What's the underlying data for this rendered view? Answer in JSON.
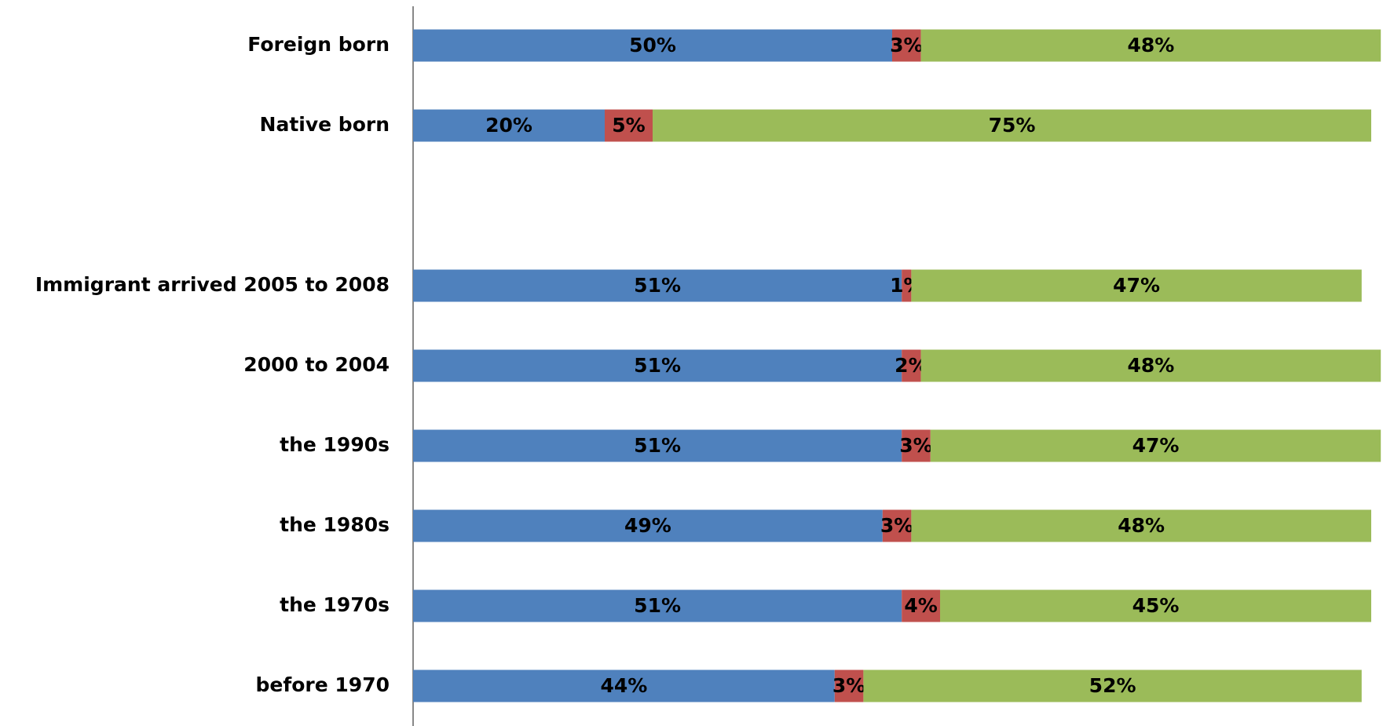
{
  "chart_data": {
    "type": "stacked-barh",
    "categories": [
      "Foreign born",
      "Native born",
      null,
      "Immigrant arrived 2005 to 2008",
      "2000 to 2004",
      "the 1990s",
      "the 1980s",
      "the 1970s",
      "before 1970"
    ],
    "series": [
      {
        "color": "#4f81bd",
        "values": [
          50,
          20,
          null,
          51,
          51,
          51,
          49,
          51,
          44
        ],
        "value_labels": [
          "50%",
          "20%",
          null,
          "51%",
          "51%",
          "51%",
          "49%",
          "51%",
          "44%"
        ]
      },
      {
        "color": "#c0504d",
        "values": [
          3,
          5,
          null,
          1,
          2,
          3,
          3,
          4,
          3
        ],
        "value_labels": [
          "3%",
          "5%",
          null,
          "1%",
          "2%",
          "3%",
          "3%",
          "4%",
          "3%"
        ]
      },
      {
        "color": "#9bbb59",
        "values": [
          48,
          75,
          null,
          47,
          48,
          47,
          48,
          45,
          52
        ],
        "value_labels": [
          "48%",
          "75%",
          null,
          "47%",
          "48%",
          "47%",
          "48%",
          "45%",
          "52%"
        ]
      }
    ],
    "xlim": [
      0,
      100
    ]
  }
}
